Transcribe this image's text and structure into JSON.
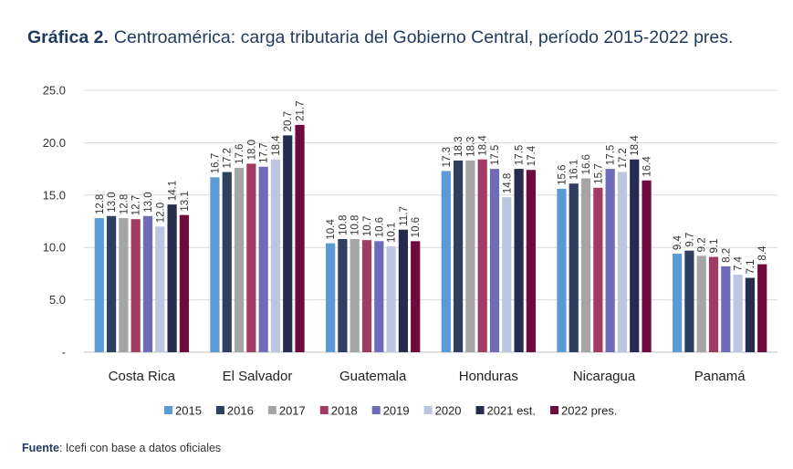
{
  "title_prefix": "Gráfica 2.",
  "title": "Centroamérica: carga tributaria del Gobierno Central, período 2015-2022 pres.",
  "source_label": "Fuente",
  "source_text": ": Icefi con base a datos oficiales",
  "chart_data": {
    "type": "bar",
    "categories": [
      "Costa Rica",
      "El Salvador",
      "Guatemala",
      "Honduras",
      "Nicaragua",
      "Panamá"
    ],
    "series": [
      {
        "name": "2015",
        "color": "#5b9bd5",
        "values": [
          12.8,
          16.7,
          10.4,
          17.3,
          15.6,
          9.4
        ]
      },
      {
        "name": "2016",
        "color": "#2f3f5f",
        "values": [
          13.0,
          17.2,
          10.8,
          18.3,
          16.1,
          9.7
        ]
      },
      {
        "name": "2017",
        "color": "#a5a5a5",
        "values": [
          12.8,
          17.6,
          10.8,
          18.3,
          16.6,
          9.2
        ]
      },
      {
        "name": "2018",
        "color": "#a23b63",
        "values": [
          12.7,
          18.0,
          10.7,
          18.4,
          15.7,
          9.1
        ]
      },
      {
        "name": "2019",
        "color": "#6e6cb8",
        "values": [
          13.0,
          17.7,
          10.6,
          17.5,
          17.5,
          8.2
        ]
      },
      {
        "name": "2020",
        "color": "#bcc6e0",
        "values": [
          12.0,
          18.4,
          10.1,
          14.8,
          17.2,
          7.4
        ]
      },
      {
        "name": "2021 est.",
        "color": "#262c4d",
        "values": [
          14.1,
          20.7,
          11.7,
          17.5,
          18.4,
          7.1
        ]
      },
      {
        "name": "2022 pres.",
        "color": "#6e0a3c",
        "values": [
          13.1,
          21.7,
          10.6,
          17.4,
          16.4,
          8.4
        ]
      }
    ],
    "yticks": [
      "-",
      "5.0",
      "10.0",
      "15.0",
      "20.0",
      "25.0"
    ],
    "ylim": [
      0,
      25
    ],
    "grid": true,
    "legend_position": "bottom"
  }
}
